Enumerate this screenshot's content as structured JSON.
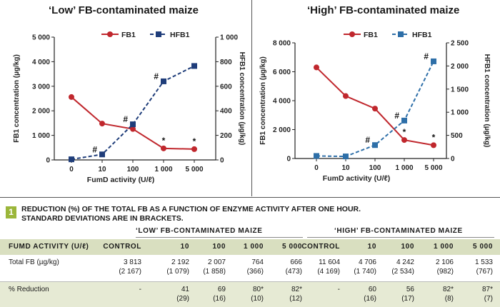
{
  "chart_data": [
    {
      "type": "line",
      "title": "‘Low’ FB-contaminated maize",
      "xlabel": "FumD activity (U/ℓ)",
      "categories": [
        "0",
        "10",
        "100",
        "1 000",
        "5 000"
      ],
      "y_left": {
        "label": "FB1 concentration (µg/kg)",
        "range": [
          0,
          5000
        ],
        "ticks": [
          "0",
          "1 000",
          "2 000",
          "3 000",
          "4 000",
          "5 000"
        ]
      },
      "y_right": {
        "label": "HFB1 concentration (µg/kg)",
        "range": [
          0,
          1000
        ],
        "ticks": [
          "0",
          "200",
          "400",
          "600",
          "800",
          "1 000"
        ]
      },
      "series": [
        {
          "name": "FB1",
          "axis": "left",
          "color": "#c0272d",
          "style": "solid",
          "marker": "circle",
          "values": [
            2560,
            1480,
            1260,
            470,
            440
          ],
          "markers": [
            "",
            "",
            "",
            "*",
            "*"
          ]
        },
        {
          "name": "HFB1",
          "axis": "right",
          "color": "#1f3d7a",
          "style": "dashed",
          "marker": "square",
          "values": [
            5,
            45,
            290,
            640,
            765
          ],
          "markers": [
            "",
            "#",
            "#",
            "#",
            ""
          ]
        }
      ],
      "legend": "top"
    },
    {
      "type": "line",
      "title": "‘High’ FB-contaminated maize",
      "xlabel": "FumD activity (U/ℓ)",
      "categories": [
        "0",
        "10",
        "100",
        "1 000",
        "5 000"
      ],
      "y_left": {
        "label": "FB1 concentration (µg/kg)",
        "range": [
          0,
          8000
        ],
        "ticks": [
          "0",
          "2 000",
          "4 000",
          "6 000",
          "8 000"
        ]
      },
      "y_right": {
        "label": "HFB1 concentration (µg/kg)",
        "range": [
          0,
          2500
        ],
        "ticks": [
          "0",
          "500",
          "1 000",
          "1 500",
          "2 000",
          "2 500"
        ]
      },
      "series": [
        {
          "name": "FB1",
          "axis": "left",
          "color": "#c0272d",
          "style": "solid",
          "marker": "circle",
          "values": [
            6300,
            4320,
            3450,
            1280,
            920
          ],
          "markers": [
            "",
            "",
            "",
            "*",
            "*"
          ]
        },
        {
          "name": "HFB1",
          "axis": "right",
          "color": "#2e6fa8",
          "style": "dashed",
          "marker": "square",
          "values": [
            55,
            45,
            290,
            820,
            2100
          ],
          "markers": [
            "",
            "",
            "#",
            "#",
            "#"
          ]
        }
      ],
      "legend": "top"
    }
  ],
  "caption": {
    "number": "1",
    "line1": "Reduction (%) of the total FB as a function of enzyme activity after one hour.",
    "line2": "Standard deviations are in brackets."
  },
  "table": {
    "group_low": "‘Low’ FB-contaminated maize",
    "group_high": "‘High’ FB-contaminated maize",
    "header_label": "FumD activity (U/ℓ)",
    "columns": [
      "Control",
      "10",
      "100",
      "1 000",
      "5 000",
      "Control",
      "10",
      "100",
      "1 000",
      "5 000"
    ],
    "rows": [
      {
        "label": "Total FB (µg/kg)",
        "values": [
          "3 813",
          "2 192",
          "2 007",
          "764",
          "666",
          "11 604",
          "4 706",
          "4 242",
          "2 106",
          "1 533"
        ],
        "sd": [
          "(2 167)",
          "(1 079)",
          "(1 858)",
          "(366)",
          "(473)",
          "(4 169)",
          "(1 740)",
          "(2 534)",
          "(982)",
          "(767)"
        ]
      },
      {
        "label": "% Reduction",
        "values": [
          "-",
          "41",
          "69",
          "80*",
          "82*",
          "-",
          "60",
          "56",
          "82*",
          "87*"
        ],
        "sd": [
          "",
          "(29)",
          "(16)",
          "(10)",
          "(12)",
          "",
          "(16)",
          "(17)",
          "(8)",
          "(7)"
        ]
      }
    ]
  }
}
